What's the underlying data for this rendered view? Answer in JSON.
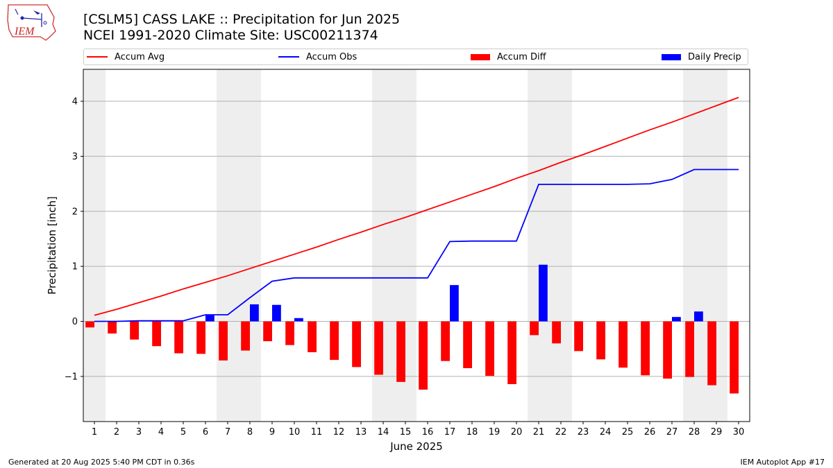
{
  "header": {
    "logo_text": "IEM",
    "title_line1": "[CSLM5] CASS LAKE :: Precipitation for Jun 2025",
    "title_line2": "NCEI 1991-2020 Climate Site: USC00211374"
  },
  "footer": {
    "left": "Generated at 20 Aug 2025 5:40 PM CDT in 0.36s",
    "right": "IEM Autoplot App #17"
  },
  "chart_data": {
    "type": "bar",
    "xlabel": "June 2025",
    "ylabel": "Precipitation [inch]",
    "xlim": [
      0.5,
      30.5
    ],
    "ylim": [
      -1.82,
      4.58
    ],
    "yticks": [
      -1,
      0,
      1,
      2,
      3,
      4
    ],
    "ytick_labels": [
      "−1",
      "0",
      "1",
      "2",
      "3",
      "4"
    ],
    "grid": "horizontal",
    "legend_position": "top",
    "weekend_shading": [
      [
        0.5,
        1.5
      ],
      [
        6.5,
        8.5
      ],
      [
        13.5,
        15.5
      ],
      [
        20.5,
        22.5
      ],
      [
        27.5,
        29.5
      ]
    ],
    "days": [
      1,
      2,
      3,
      4,
      5,
      6,
      7,
      8,
      9,
      10,
      11,
      12,
      13,
      14,
      15,
      16,
      17,
      18,
      19,
      20,
      21,
      22,
      23,
      24,
      25,
      26,
      27,
      28,
      29,
      30
    ],
    "series": [
      {
        "name": "Accum Avg",
        "kind": "line",
        "color": "#ff0000",
        "values": [
          0.11,
          0.22,
          0.34,
          0.46,
          0.59,
          0.71,
          0.83,
          0.96,
          1.09,
          1.22,
          1.35,
          1.49,
          1.62,
          1.76,
          1.89,
          2.03,
          2.17,
          2.31,
          2.45,
          2.6,
          2.74,
          2.89,
          3.03,
          3.18,
          3.33,
          3.48,
          3.62,
          3.77,
          3.92,
          4.07
        ]
      },
      {
        "name": "Accum Obs",
        "kind": "line",
        "color": "#0000ff",
        "values": [
          0.0,
          0.0,
          0.01,
          0.01,
          0.01,
          0.12,
          0.12,
          0.43,
          0.73,
          0.79,
          0.79,
          0.79,
          0.79,
          0.79,
          0.79,
          0.79,
          1.45,
          1.46,
          1.46,
          1.46,
          2.49,
          2.49,
          2.49,
          2.49,
          2.49,
          2.5,
          2.58,
          2.76,
          2.76,
          2.76
        ]
      },
      {
        "name": "Accum Diff",
        "kind": "bar",
        "color": "#ff0000",
        "values": [
          -0.11,
          -0.22,
          -0.33,
          -0.45,
          -0.58,
          -0.59,
          -0.71,
          -0.53,
          -0.36,
          -0.43,
          -0.56,
          -0.7,
          -0.83,
          -0.97,
          -1.1,
          -1.24,
          -0.72,
          -0.85,
          -0.99,
          -1.14,
          -0.25,
          -0.4,
          -0.54,
          -0.69,
          -0.84,
          -0.98,
          -1.04,
          -1.01,
          -1.16,
          -1.31
        ]
      },
      {
        "name": "Daily Precip",
        "kind": "bar",
        "color": "#0000ff",
        "values": [
          0,
          0,
          0,
          0,
          0,
          0.11,
          0,
          0.31,
          0.3,
          0.06,
          0,
          0,
          0,
          0,
          0,
          0,
          0.66,
          0,
          0,
          0,
          1.03,
          0,
          0,
          0,
          0,
          0,
          0.08,
          0.18,
          0,
          0
        ]
      }
    ]
  }
}
